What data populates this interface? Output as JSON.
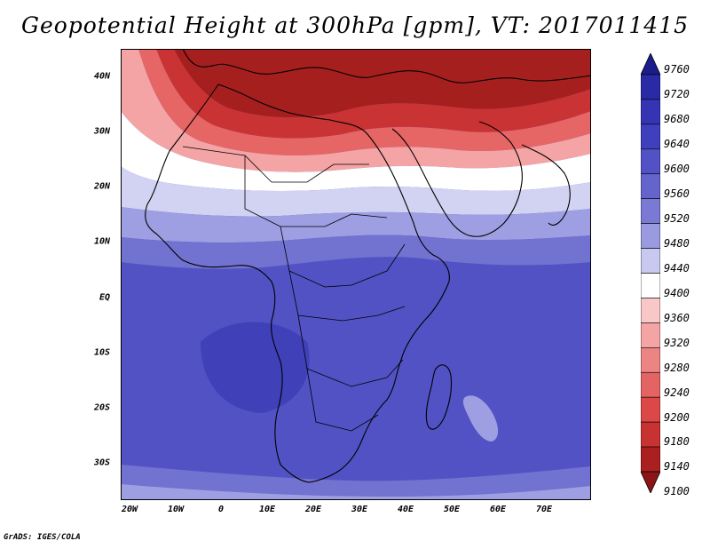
{
  "title": "Geopotential Height at 300hPa [gpm], VT: 2017011415",
  "footer": "GrADS: IGES/COLA",
  "lat_labels": [
    "40N",
    "30N",
    "20N",
    "10N",
    "EQ",
    "10S",
    "20S",
    "30S"
  ],
  "lon_labels": [
    "20W",
    "10W",
    "0",
    "10E",
    "20E",
    "30E",
    "40E",
    "50E",
    "60E",
    "70E"
  ],
  "colorbar": {
    "levels": [
      "9760",
      "9720",
      "9680",
      "9640",
      "9600",
      "9560",
      "9520",
      "9480",
      "9440",
      "9400",
      "9360",
      "9320",
      "9280",
      "9240",
      "9200",
      "9180",
      "9140",
      "9100"
    ],
    "colors": [
      "#1c1c8c",
      "#2a2aa6",
      "#3434b4",
      "#4040be",
      "#5252c6",
      "#6464cc",
      "#7a7ad4",
      "#9a9ae0",
      "#c8c8f0",
      "#ffffff",
      "#f8c8c8",
      "#f4a4a4",
      "#ec8484",
      "#e46464",
      "#dc4848",
      "#c83232",
      "#aa2020",
      "#8c1414"
    ]
  },
  "field": {
    "colors": {
      "deep_red": "#a51f1f",
      "red": "#c93333",
      "light_red": "#e66565",
      "pink": "#f4a4a4",
      "pale_pink": "#f8d0d0",
      "white": "#ffffff",
      "pale_blue": "#d2d2f2",
      "light_blue": "#9e9ee2",
      "mid_blue": "#7272d0",
      "blue": "#5252c4",
      "dark_blue": "#4040b8"
    }
  }
}
